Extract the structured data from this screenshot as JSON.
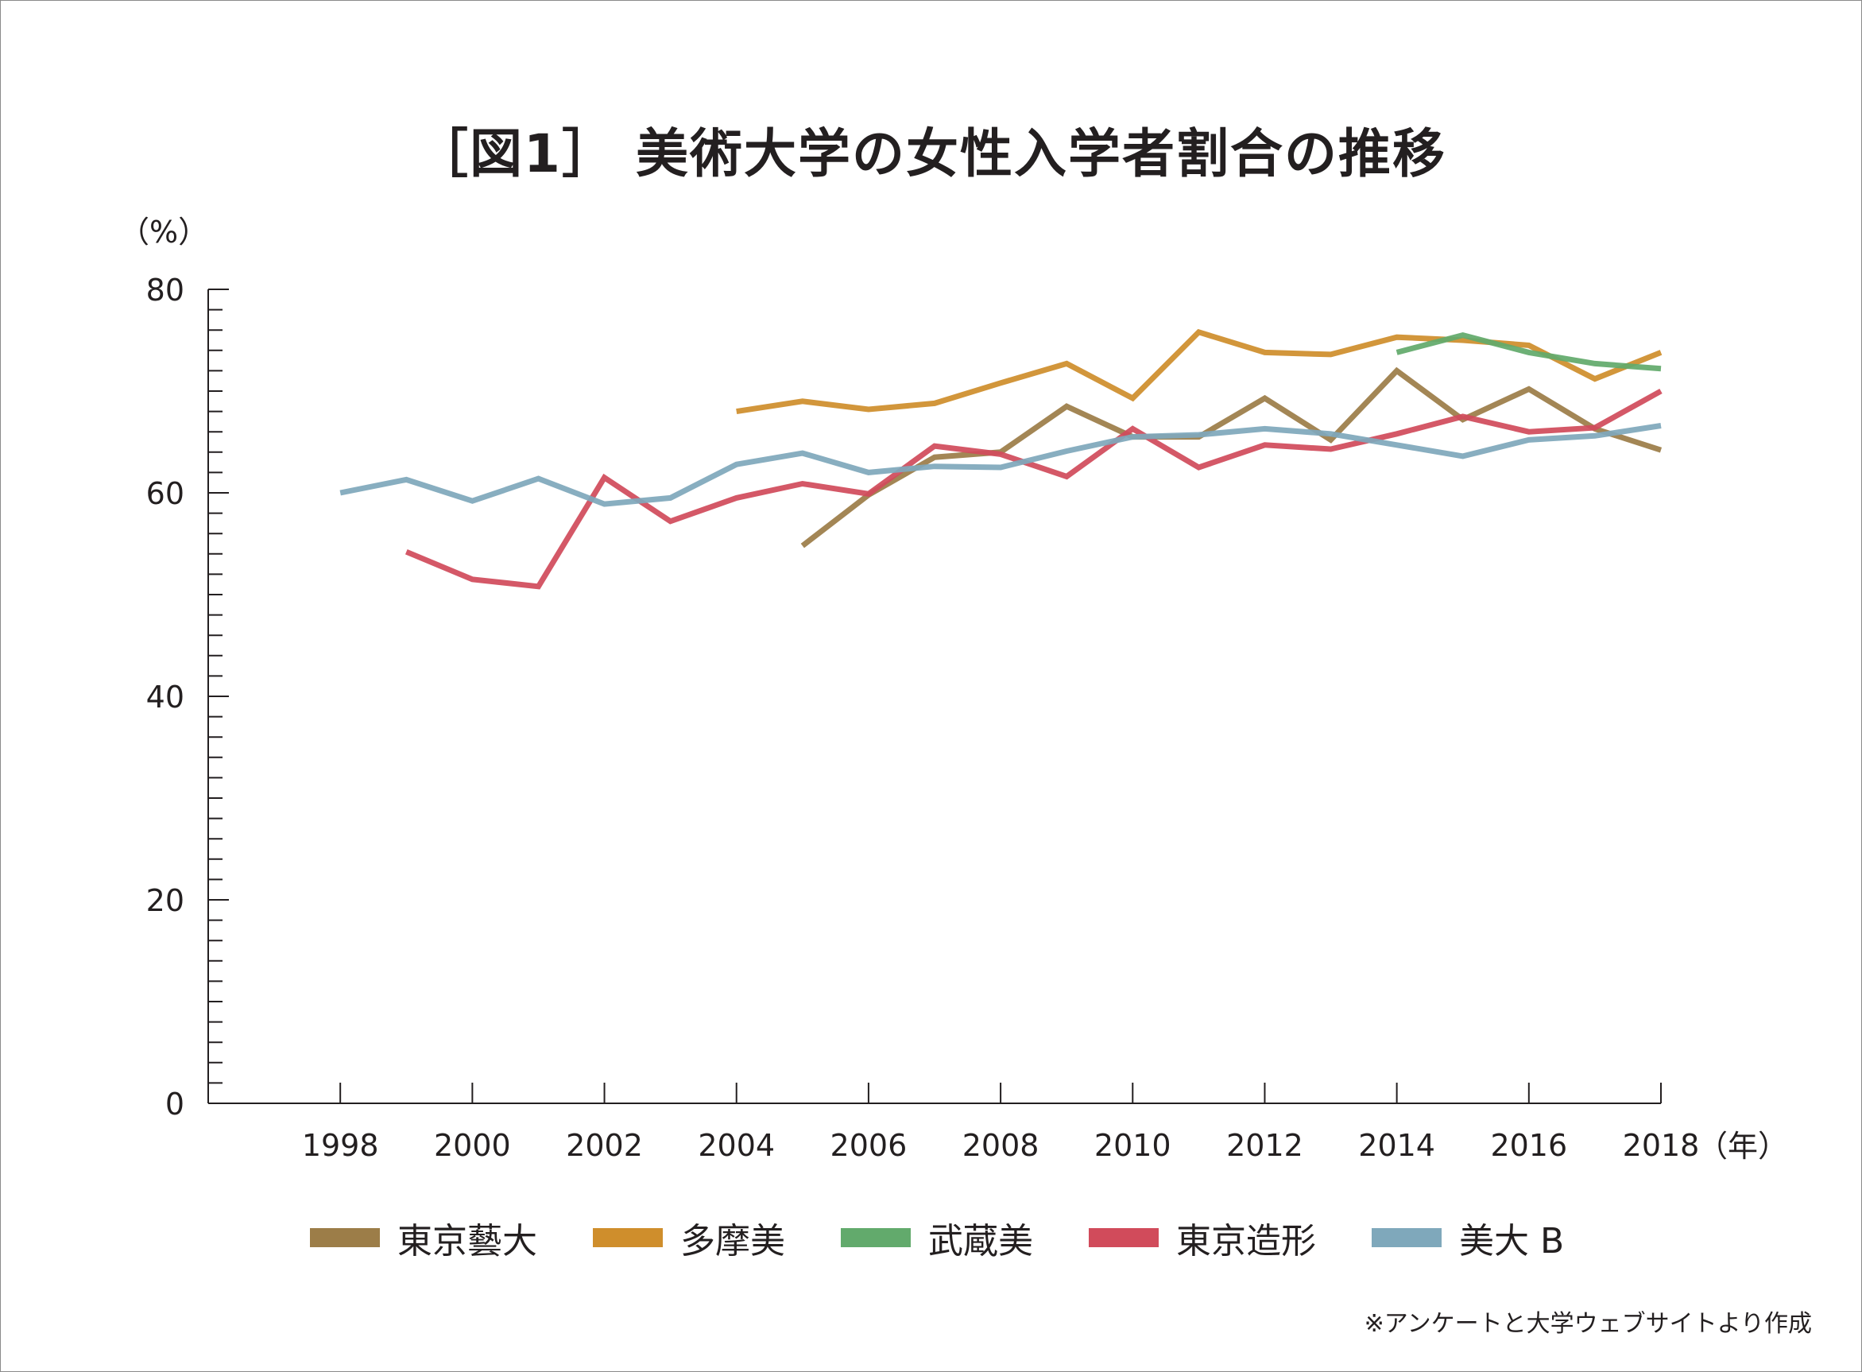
{
  "title": "［図1］ 美術大学の女性入学者割合の推移",
  "source_note": "※アンケートと大学ウェブサイトより作成",
  "colors": {
    "axis": "#231f20",
    "東京藝大": "#9c7d48",
    "多摩美": "#cf8e2c",
    "武蔵美": "#62aa6c",
    "東京造形": "#d14b5b",
    "美大B": "#7fa8bb"
  },
  "chart_data": {
    "type": "line",
    "title": "［図1］ 美術大学の女性入学者割合の推移",
    "ylabel": "（%）",
    "xlabel": "（年）",
    "ylim": [
      0,
      80
    ],
    "xlim": [
      1996,
      2018
    ],
    "x_ticks": [
      1998,
      2000,
      2002,
      2004,
      2006,
      2008,
      2010,
      2012,
      2014,
      2016,
      2018
    ],
    "y_ticks": [
      0,
      20,
      40,
      60,
      80
    ],
    "grid": false,
    "legend_position": "bottom",
    "series": [
      {
        "name": "東京藝大",
        "color": "#9c7d48",
        "x": [
          2005,
          2006,
          2007,
          2008,
          2009,
          2010,
          2011,
          2012,
          2013,
          2014,
          2015,
          2016,
          2017,
          2018
        ],
        "values": [
          54.8,
          59.8,
          63.5,
          64.0,
          68.5,
          65.5,
          65.5,
          69.3,
          65.2,
          72.0,
          67.2,
          70.2,
          66.3,
          64.2
        ]
      },
      {
        "name": "多摩美",
        "color": "#cf8e2c",
        "x": [
          2004,
          2005,
          2006,
          2007,
          2008,
          2009,
          2010,
          2011,
          2012,
          2013,
          2014,
          2015,
          2016,
          2017,
          2018
        ],
        "values": [
          68.0,
          69.0,
          68.2,
          68.8,
          70.8,
          72.7,
          69.3,
          75.8,
          73.8,
          73.6,
          75.3,
          75.0,
          74.5,
          71.2,
          73.8
        ]
      },
      {
        "name": "武蔵美",
        "color": "#62aa6c",
        "x": [
          2014,
          2015,
          2016,
          2017,
          2018
        ],
        "values": [
          73.8,
          75.5,
          73.8,
          72.7,
          72.2
        ]
      },
      {
        "name": "東京造形",
        "color": "#d14b5b",
        "x": [
          1999,
          2000,
          2001,
          2002,
          2003,
          2004,
          2005,
          2006,
          2007,
          2008,
          2009,
          2010,
          2011,
          2012,
          2013,
          2014,
          2015,
          2016,
          2017,
          2018
        ],
        "values": [
          54.2,
          51.5,
          50.8,
          61.5,
          57.2,
          59.5,
          60.9,
          59.9,
          64.6,
          63.8,
          61.6,
          66.3,
          62.5,
          64.7,
          64.3,
          65.8,
          67.5,
          66.0,
          66.4,
          70.0
        ]
      },
      {
        "name": "美大 B",
        "color": "#7fa8bb",
        "x": [
          1998,
          1999,
          2000,
          2001,
          2002,
          2003,
          2004,
          2005,
          2006,
          2007,
          2008,
          2009,
          2010,
          2011,
          2012,
          2013,
          2014,
          2015,
          2016,
          2017,
          2018
        ],
        "values": [
          60.0,
          61.3,
          59.2,
          61.4,
          58.9,
          59.5,
          62.8,
          63.9,
          62.0,
          62.6,
          62.5,
          64.1,
          65.5,
          65.7,
          66.3,
          65.8,
          64.7,
          63.6,
          65.2,
          65.6,
          66.6
        ]
      }
    ]
  },
  "legend": [
    {
      "label": "東京藝大",
      "color": "#9c7d48"
    },
    {
      "label": "多摩美",
      "color": "#cf8e2c"
    },
    {
      "label": "武蔵美",
      "color": "#62aa6c"
    },
    {
      "label": "東京造形",
      "color": "#d14b5b"
    },
    {
      "label": "美大 B",
      "color": "#7fa8bb"
    }
  ]
}
